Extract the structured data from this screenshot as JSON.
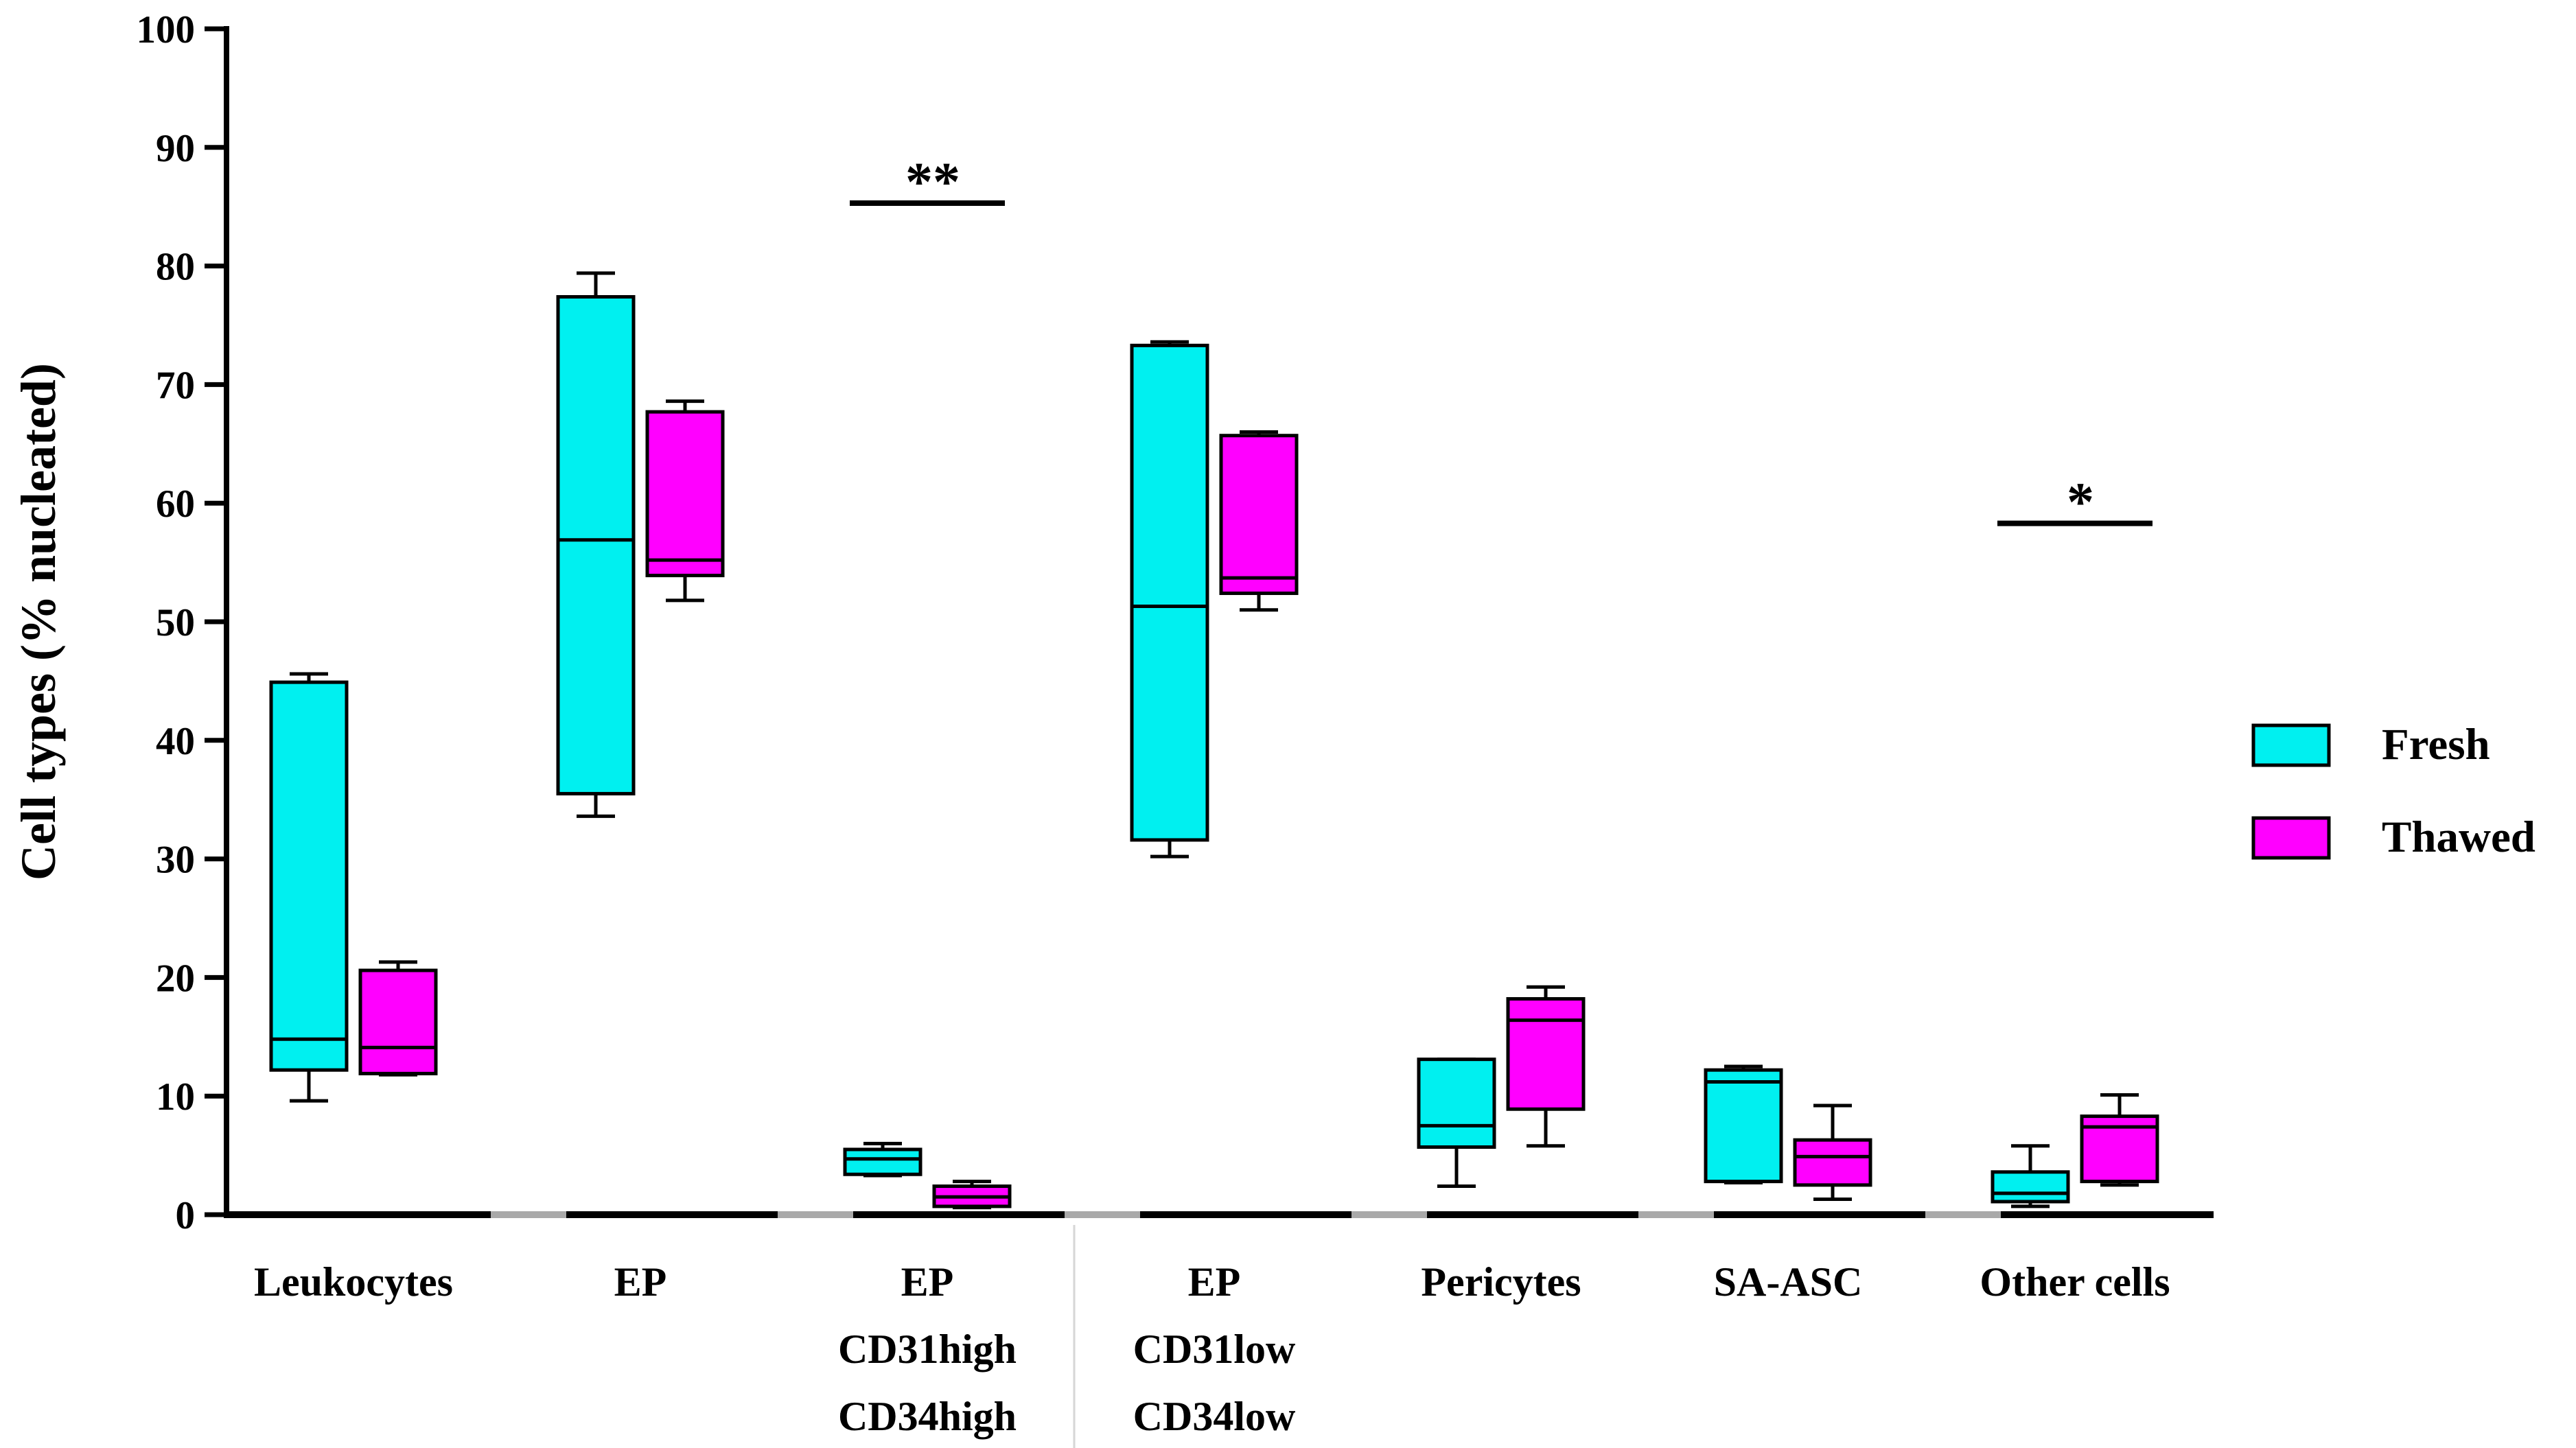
{
  "chart_data": {
    "type": "box",
    "ylabel": "Cell types (% nucleated)",
    "ylim": [
      0,
      100
    ],
    "yticks": [
      0,
      10,
      20,
      30,
      40,
      50,
      60,
      70,
      80,
      90,
      100
    ],
    "grid": false,
    "legend_position": "right",
    "categories": [
      [
        "Leukocytes"
      ],
      [
        "EP"
      ],
      [
        "EP",
        "CD31high",
        "CD34high"
      ],
      [
        "EP",
        "CD31low",
        "CD34low"
      ],
      [
        "Pericytes"
      ],
      [
        "SA-ASC"
      ],
      [
        "Other cells"
      ]
    ],
    "series": [
      {
        "name": "Fresh",
        "color": "#00f0f0",
        "boxes": [
          {
            "min": 9.6,
            "q1": 12.2,
            "median": 14.8,
            "q3": 44.9,
            "max": 45.6
          },
          {
            "min": 33.6,
            "q1": 35.5,
            "median": 56.9,
            "q3": 77.4,
            "max": 79.4
          },
          {
            "min": 3.3,
            "q1": 3.4,
            "median": 4.7,
            "q3": 5.5,
            "max": 6.0
          },
          {
            "min": 30.2,
            "q1": 31.6,
            "median": 51.3,
            "q3": 73.3,
            "max": 73.6
          },
          {
            "min": 2.4,
            "q1": 5.7,
            "median": 7.5,
            "q3": 13.1,
            "max": 13.1
          },
          {
            "min": 2.7,
            "q1": 2.8,
            "median": 11.2,
            "q3": 12.2,
            "max": 12.5
          },
          {
            "min": 0.7,
            "q1": 1.1,
            "median": 1.8,
            "q3": 3.6,
            "max": 5.8
          }
        ]
      },
      {
        "name": "Thawed",
        "color": "#ff00ff",
        "boxes": [
          {
            "min": 11.8,
            "q1": 11.9,
            "median": 14.1,
            "q3": 20.6,
            "max": 21.3
          },
          {
            "min": 51.8,
            "q1": 53.9,
            "median": 55.2,
            "q3": 67.7,
            "max": 68.6
          },
          {
            "min": 0.6,
            "q1": 0.7,
            "median": 1.5,
            "q3": 2.4,
            "max": 2.8
          },
          {
            "min": 51.0,
            "q1": 52.4,
            "median": 53.7,
            "q3": 65.7,
            "max": 66.0
          },
          {
            "min": 5.8,
            "q1": 8.9,
            "median": 16.4,
            "q3": 18.2,
            "max": 19.2
          },
          {
            "min": 1.3,
            "q1": 2.5,
            "median": 4.9,
            "q3": 6.3,
            "max": 9.2
          },
          {
            "min": 2.5,
            "q1": 2.8,
            "median": 7.4,
            "q3": 8.3,
            "max": 10.1
          }
        ]
      }
    ],
    "annotations": [
      {
        "text": "**",
        "category_index": 2,
        "y": 85.3
      },
      {
        "text": "*",
        "category_index": 6,
        "y": 58.3
      }
    ]
  }
}
